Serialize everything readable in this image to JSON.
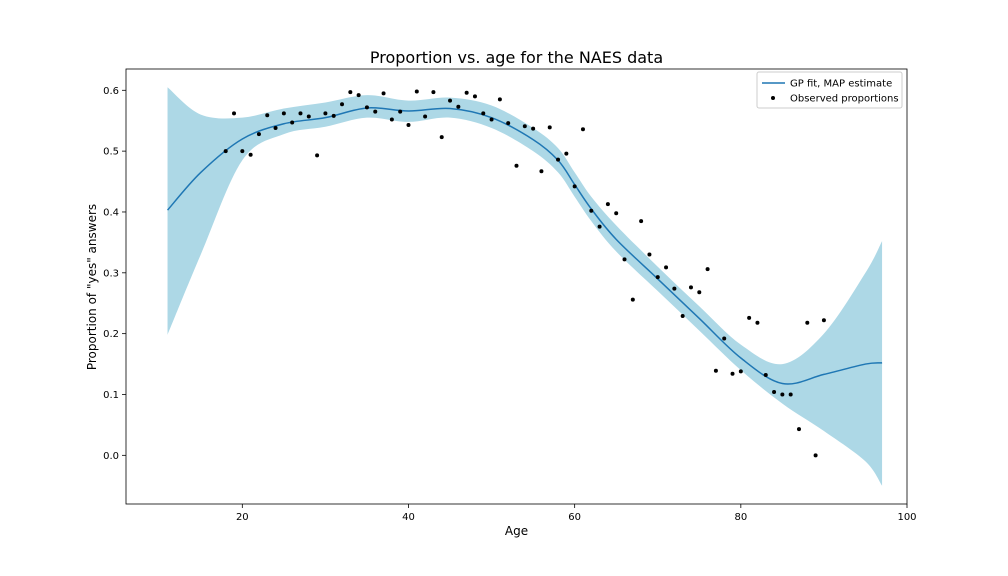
{
  "chart_data": {
    "type": "line",
    "title": "Proportion vs. age for the NAES data",
    "xlabel": "Age",
    "ylabel": "Proportion of \"yes\" answers",
    "xlim": [
      6,
      100
    ],
    "ylim": [
      -0.08,
      0.635
    ],
    "xticks": [
      20,
      40,
      60,
      80,
      100
    ],
    "yticks": [
      0.0,
      0.1,
      0.2,
      0.3,
      0.4,
      0.5,
      0.6
    ],
    "grid": false,
    "legend_position": "top-right",
    "band_color": "#add8e6",
    "line_color": "#1f77b4",
    "point_color": "#000000",
    "series": [
      {
        "name": "GP fit, MAP estimate",
        "kind": "line",
        "x": [
          11,
          15,
          20,
          25,
          30,
          35,
          40,
          45,
          50,
          55,
          58,
          60,
          62,
          65,
          70,
          75,
          80,
          85,
          90,
          95,
          97
        ],
        "y": [
          0.403,
          0.465,
          0.52,
          0.545,
          0.555,
          0.571,
          0.566,
          0.57,
          0.555,
          0.519,
          0.485,
          0.445,
          0.405,
          0.355,
          0.29,
          0.225,
          0.16,
          0.118,
          0.133,
          0.15,
          0.152
        ],
        "lower": [
          0.198,
          0.33,
          0.485,
          0.528,
          0.54,
          0.555,
          0.548,
          0.555,
          0.538,
          0.5,
          0.465,
          0.425,
          0.385,
          0.335,
          0.27,
          0.205,
          0.14,
          0.085,
          0.04,
          -0.01,
          -0.05
        ],
        "upper": [
          0.605,
          0.56,
          0.555,
          0.57,
          0.58,
          0.592,
          0.583,
          0.588,
          0.575,
          0.538,
          0.505,
          0.465,
          0.425,
          0.378,
          0.31,
          0.245,
          0.182,
          0.15,
          0.2,
          0.3,
          0.352
        ]
      },
      {
        "name": "Observed proportions",
        "kind": "scatter",
        "x": [
          18,
          19,
          20,
          21,
          22,
          23,
          24,
          25,
          26,
          27,
          28,
          29,
          30,
          31,
          32,
          33,
          34,
          35,
          36,
          37,
          38,
          39,
          40,
          41,
          42,
          43,
          44,
          45,
          46,
          47,
          48,
          49,
          50,
          51,
          52,
          53,
          54,
          55,
          56,
          57,
          58,
          59,
          60,
          61,
          62,
          63,
          64,
          65,
          66,
          67,
          68,
          69,
          70,
          71,
          72,
          73,
          74,
          75,
          76,
          77,
          78,
          79,
          80,
          81,
          82,
          83,
          84,
          85,
          86,
          87,
          88,
          89,
          90
        ],
        "y": [
          0.5,
          0.562,
          0.5,
          0.494,
          0.528,
          0.559,
          0.538,
          0.562,
          0.547,
          0.562,
          0.557,
          0.493,
          0.562,
          0.558,
          0.577,
          0.597,
          0.592,
          0.572,
          0.565,
          0.595,
          0.552,
          0.565,
          0.543,
          0.598,
          0.557,
          0.597,
          0.523,
          0.583,
          0.573,
          0.596,
          0.59,
          0.562,
          0.552,
          0.585,
          0.546,
          0.476,
          0.541,
          0.537,
          0.467,
          0.539,
          0.486,
          0.496,
          0.442,
          0.536,
          0.402,
          0.376,
          0.413,
          0.398,
          0.322,
          0.256,
          0.385,
          0.33,
          0.293,
          0.309,
          0.274,
          0.229,
          0.276,
          0.268,
          0.306,
          0.139,
          0.192,
          0.134,
          0.138,
          0.226,
          0.218,
          0.132,
          0.104,
          0.1,
          0.1,
          0.043,
          0.218,
          0.0,
          0.222
        ]
      }
    ]
  }
}
